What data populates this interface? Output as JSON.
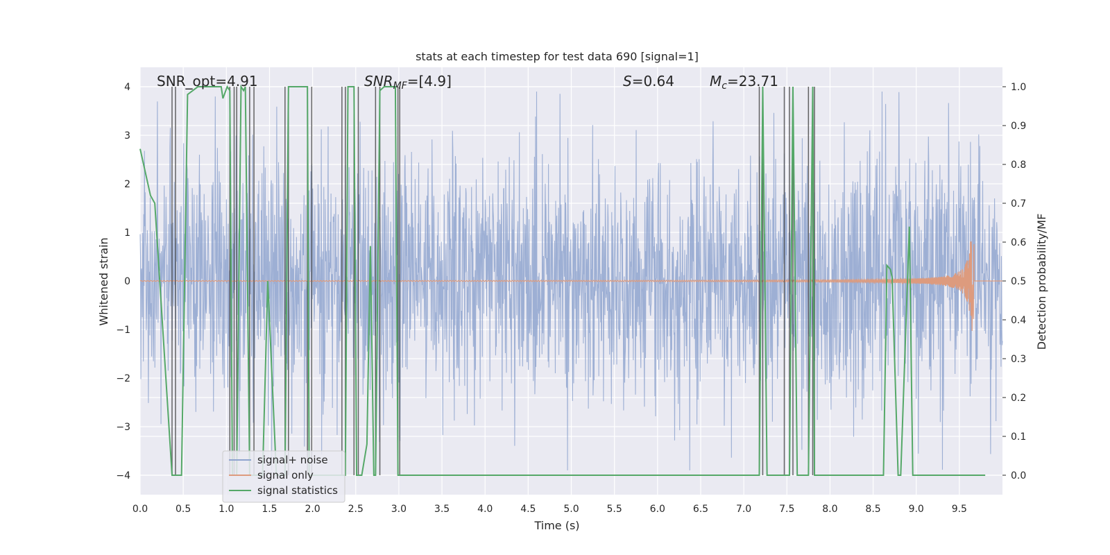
{
  "chart_data": {
    "type": "line",
    "title": "stats at each timestep for test data 690 [signal=1]",
    "xlabel": "Time (s)",
    "ylabel": "Whitened strain",
    "y2label": "Detection probability/MF",
    "xlim": [
      0.0,
      10.0
    ],
    "ylim": [
      -4.4,
      4.4
    ],
    "y2lim": [
      -0.05,
      1.05
    ],
    "x_ticks": [
      "0.0",
      "0.5",
      "1.0",
      "1.5",
      "2.0",
      "2.5",
      "3.0",
      "3.5",
      "4.0",
      "4.5",
      "5.0",
      "5.5",
      "6.0",
      "6.5",
      "7.0",
      "7.5",
      "8.0",
      "8.5",
      "9.0",
      "9.5"
    ],
    "y_ticks": [
      "−4",
      "−3",
      "−2",
      "−1",
      "0",
      "1",
      "2",
      "3",
      "4"
    ],
    "y2_ticks": [
      "0.0",
      "0.1",
      "0.2",
      "0.3",
      "0.4",
      "0.5",
      "0.6",
      "0.7",
      "0.8",
      "0.9",
      "1.0"
    ],
    "grid": true,
    "legend_placement": "lower-left",
    "annotations": {
      "snr_opt": "SNR_opt=4.91",
      "snr_mf_base": "SNR",
      "snr_mf_sub": "MF",
      "snr_mf_rest": "=[4.9]",
      "s_sym": "S",
      "s_val": "=0.64",
      "mc_base": "M",
      "mc_sub": "c",
      "mc_val": "=23.71"
    },
    "series": [
      {
        "name": "signal+ noise",
        "color": "#8fa4cf",
        "axis": "left",
        "amplitude_range": [
          -3.9,
          3.9
        ]
      },
      {
        "name": "signal only",
        "color": "#dd9b7e",
        "axis": "left",
        "chirp_end_time": 9.67,
        "peak_amplitude": 1.05
      },
      {
        "name": "signal statistics",
        "color": "#55a868",
        "axis": "right",
        "x": [
          0.0,
          0.12,
          0.17,
          0.37,
          0.41,
          0.43,
          0.48,
          0.55,
          0.67,
          0.75,
          0.84,
          0.94,
          0.96,
          1.01,
          1.04,
          1.07,
          1.09,
          1.12,
          1.17,
          1.2,
          1.22,
          1.27,
          1.29,
          1.32,
          1.39,
          1.42,
          1.48,
          1.58,
          1.61,
          1.63,
          1.68,
          1.72,
          1.74,
          1.77,
          1.94,
          1.96,
          1.99,
          2.01,
          2.06,
          2.22,
          2.24,
          2.26,
          2.34,
          2.38,
          2.41,
          2.46,
          2.48,
          2.51,
          2.53,
          2.57,
          2.63,
          2.67,
          2.71,
          2.73,
          2.78,
          2.83,
          2.92,
          2.96,
          2.99,
          3.01,
          3.06,
          7.18,
          7.22,
          7.27,
          7.32,
          7.47,
          7.5,
          7.53,
          7.57,
          7.62,
          7.66,
          7.71,
          7.75,
          7.8,
          7.82,
          7.85,
          8.56,
          8.62,
          8.66,
          8.7,
          8.72,
          8.79,
          8.82,
          8.92,
          8.96,
          8.99,
          9.8
        ],
        "values": [
          0.84,
          0.72,
          0.7,
          0.0,
          0.0,
          0.0,
          0.0,
          0.98,
          1.0,
          1.0,
          1.0,
          1.0,
          0.97,
          1.0,
          0.99,
          0.0,
          0.0,
          0.0,
          1.0,
          0.99,
          1.0,
          0.0,
          0.0,
          0.0,
          0.0,
          0.0,
          0.5,
          0.0,
          0.0,
          0.0,
          0.0,
          1.0,
          1.0,
          1.0,
          1.0,
          0.0,
          0.0,
          0.0,
          0.0,
          0.0,
          0.0,
          0.0,
          0.0,
          0.0,
          1.0,
          1.0,
          1.0,
          0.0,
          0.0,
          0.0,
          0.08,
          0.59,
          0.0,
          0.0,
          0.99,
          1.0,
          1.0,
          1.0,
          0.0,
          0.0,
          0.0,
          0.0,
          1.0,
          0.0,
          0.0,
          0.0,
          0.0,
          0.0,
          1.0,
          0.0,
          0.0,
          0.0,
          0.0,
          1.0,
          0.0,
          0.0,
          0.0,
          0.0,
          0.54,
          0.53,
          0.51,
          0.0,
          0.0,
          0.64,
          0.0,
          0.0,
          0.0
        ]
      }
    ],
    "vertical_markers": [
      0.37,
      0.41,
      1.04,
      1.09,
      1.12,
      1.27,
      1.32,
      1.68,
      1.72,
      1.94,
      1.99,
      2.34,
      2.38,
      2.48,
      2.53,
      2.73,
      2.78,
      2.99,
      3.01,
      7.18,
      7.22,
      7.47,
      7.53,
      7.57,
      7.75,
      7.8,
      7.82
    ]
  }
}
